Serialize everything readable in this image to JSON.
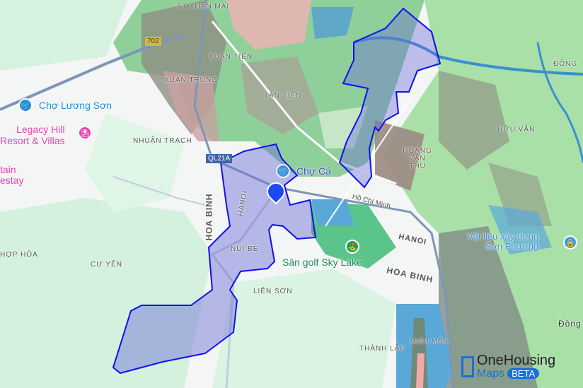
{
  "map": {
    "place_labels": [
      "TT XUÂN MAI",
      "XUÂN TIẾN",
      "XUÂN TRUNG",
      "TÂN TIẾN",
      "NHUẬN TRẠCH",
      "HOÀNG VĂN THỤ",
      "HỮU VĂN",
      "ĐÔNG",
      "HỢP HÒA",
      "CƯ YÊN",
      "NÚI BÉ",
      "LIÊN SƠN",
      "THÀNH LẬP",
      "MIẾU MÔN",
      "Đồng"
    ],
    "road_labels": {
      "qr702": "702",
      "ql21a": "QL21A",
      "hcm": "Hồ Chí Minh",
      "hoabinh_v": "HOA BINH",
      "hoabinh": "HOA BINH",
      "hanoi": "HANOI",
      "hanoi_v": "HANOI"
    },
    "pois": [
      {
        "label": "Chợ Lương Sơn",
        "icon": "shopping-cart-icon",
        "color": "#1a8fe0"
      },
      {
        "label": "Legacy Hill\nResort & Villas",
        "icon": "umbrella-icon",
        "color": "#e83ea8"
      },
      {
        "label": "tain\nestay",
        "icon": "",
        "color": "#e83ea8"
      },
      {
        "label": "Chợ Cá",
        "icon": "shopping-cart-icon",
        "color": "#1a8fe0"
      },
      {
        "label": "Sân golf Sky Lake",
        "icon": "golf-icon",
        "color": "#1e9a5a"
      },
      {
        "label": "Vật liệu xây dựng\nSơn Phương",
        "icon": "shop-icon",
        "color": "#1a8fe0"
      }
    ],
    "selected_marker_icon": "building-icon",
    "boundary_color": "#1010ee"
  },
  "logo": {
    "name": "OneHousing",
    "sub": "Maps",
    "badge": "BETA"
  }
}
